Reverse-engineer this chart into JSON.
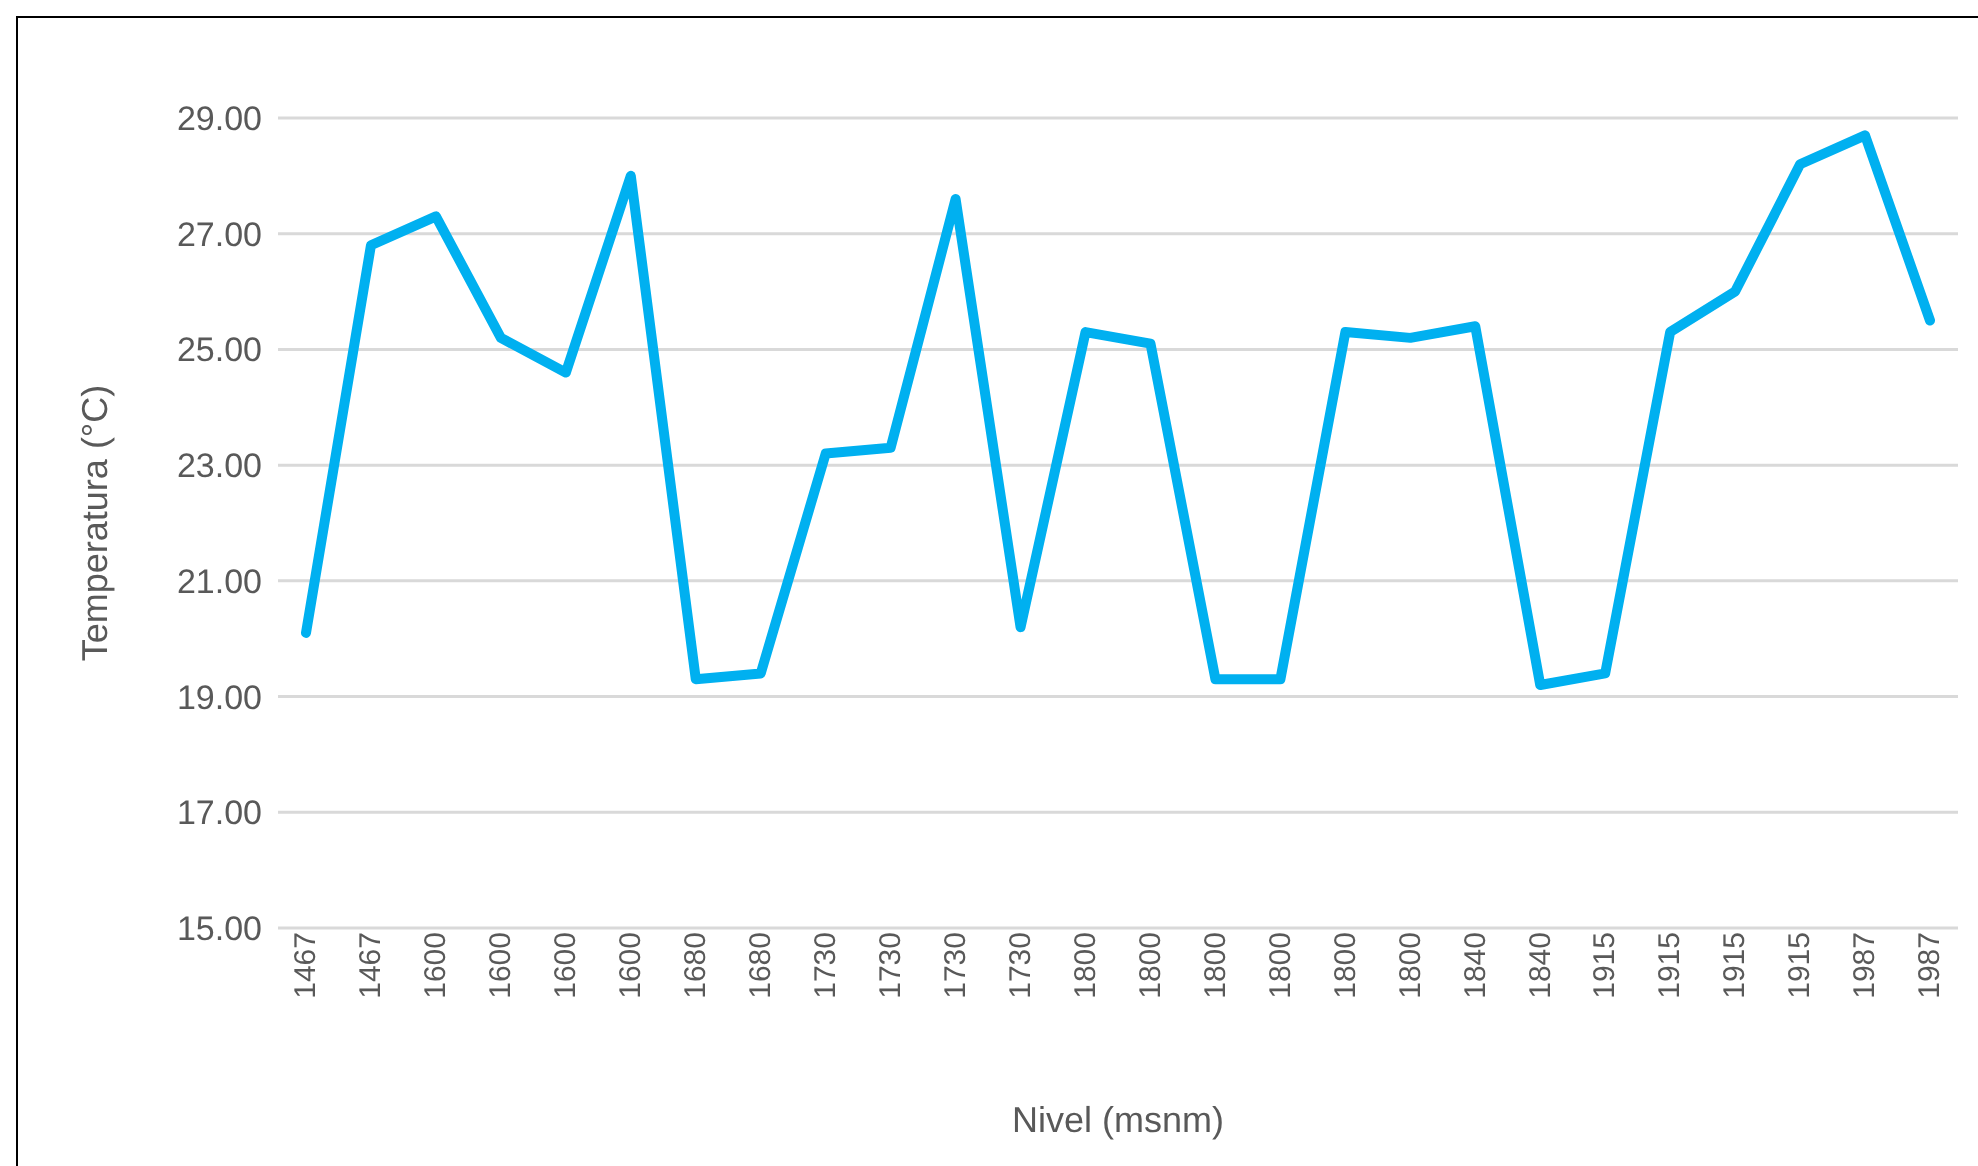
{
  "chart_data": {
    "type": "line",
    "xlabel": "Nivel (msnm)",
    "ylabel": "Temperatura (°C)",
    "categories": [
      "1467",
      "1467",
      "1600",
      "1600",
      "1600",
      "1600",
      "1680",
      "1680",
      "1730",
      "1730",
      "1730",
      "1730",
      "1800",
      "1800",
      "1800",
      "1800",
      "1800",
      "1800",
      "1840",
      "1840",
      "1915",
      "1915",
      "1915",
      "1915",
      "1987",
      "1987"
    ],
    "series": [
      {
        "color": "#00b0f0",
        "values": [
          20.1,
          26.8,
          27.3,
          25.2,
          24.6,
          28.0,
          19.3,
          19.4,
          23.2,
          23.3,
          27.6,
          20.2,
          25.3,
          25.1,
          19.3,
          19.3,
          25.3,
          25.2,
          25.4,
          19.2,
          19.4,
          25.3,
          26.0,
          28.2,
          28.7,
          25.5
        ]
      }
    ],
    "ylim": [
      15,
      29
    ],
    "yticks": [
      {
        "value": 15,
        "label": "15.00"
      },
      {
        "value": 17,
        "label": "17.00"
      },
      {
        "value": 19,
        "label": "19.00"
      },
      {
        "value": 21,
        "label": "21.00"
      },
      {
        "value": 23,
        "label": "23.00"
      },
      {
        "value": 25,
        "label": "25.00"
      },
      {
        "value": 27,
        "label": "27.00"
      },
      {
        "value": 29,
        "label": "29.00"
      }
    ],
    "grid": "y",
    "marker": "none",
    "line_style": "solid"
  }
}
